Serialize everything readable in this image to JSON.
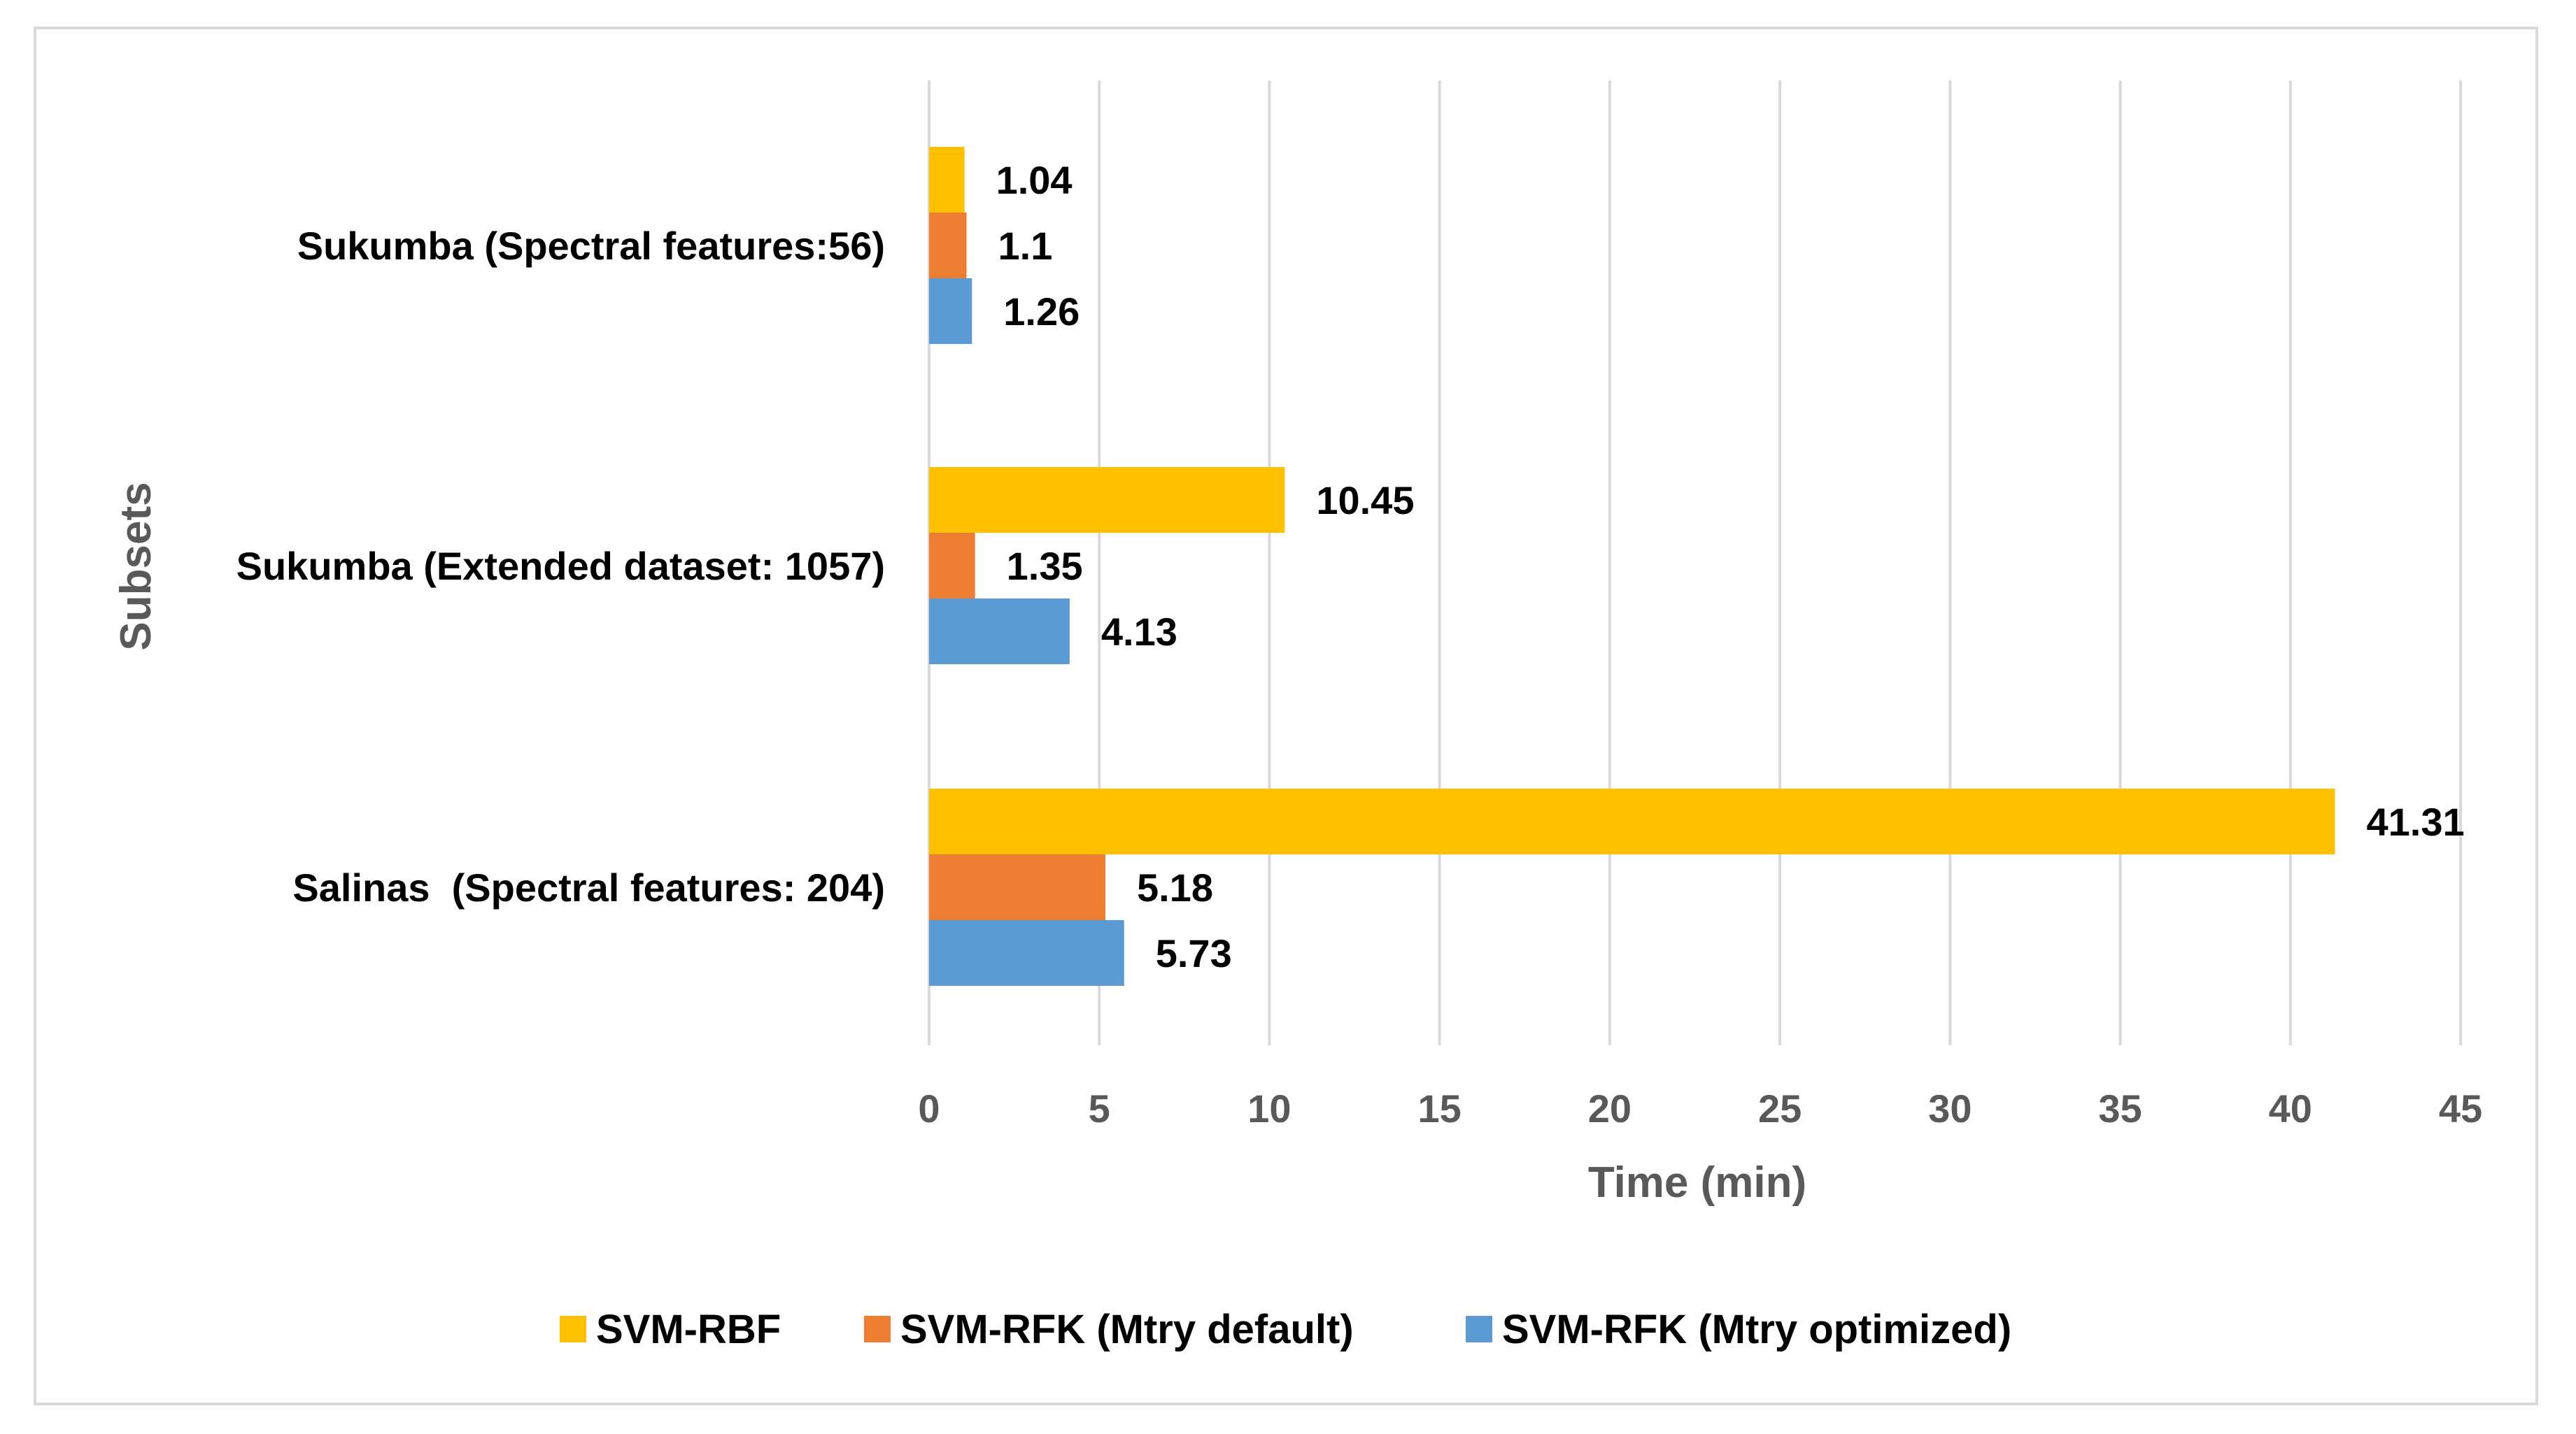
{
  "chart_data": {
    "type": "bar",
    "orientation": "horizontal",
    "title": "",
    "xlabel": "Time (min)",
    "ylabel": "Subsets",
    "xlim": [
      0,
      45
    ],
    "xticks": [
      0,
      5,
      10,
      15,
      20,
      25,
      30,
      35,
      40,
      45
    ],
    "grid": true,
    "legend_position": "bottom",
    "categories": [
      "Sukumba (Spectral features:56)",
      "Sukumba (Extended dataset: 1057)",
      "Salinas  (Spectral features: 204)"
    ],
    "series": [
      {
        "name": "SVM-RBF",
        "color": "#ffc000",
        "values": [
          1.04,
          10.45,
          41.31
        ],
        "labels": [
          "1.04",
          "10.45",
          "41.31"
        ]
      },
      {
        "name": "SVM-RFK (Mtry default)",
        "color": "#ed7d31",
        "values": [
          1.1,
          1.35,
          5.18
        ],
        "labels": [
          "1.1",
          "1.35",
          "5.18"
        ]
      },
      {
        "name": "SVM-RFK (Mtry optimized)",
        "color": "#5b9bd5",
        "values": [
          1.26,
          4.13,
          5.73
        ],
        "labels": [
          "1.26",
          "4.13",
          "5.73"
        ]
      }
    ],
    "gridline_color": "#d9d9d9"
  }
}
